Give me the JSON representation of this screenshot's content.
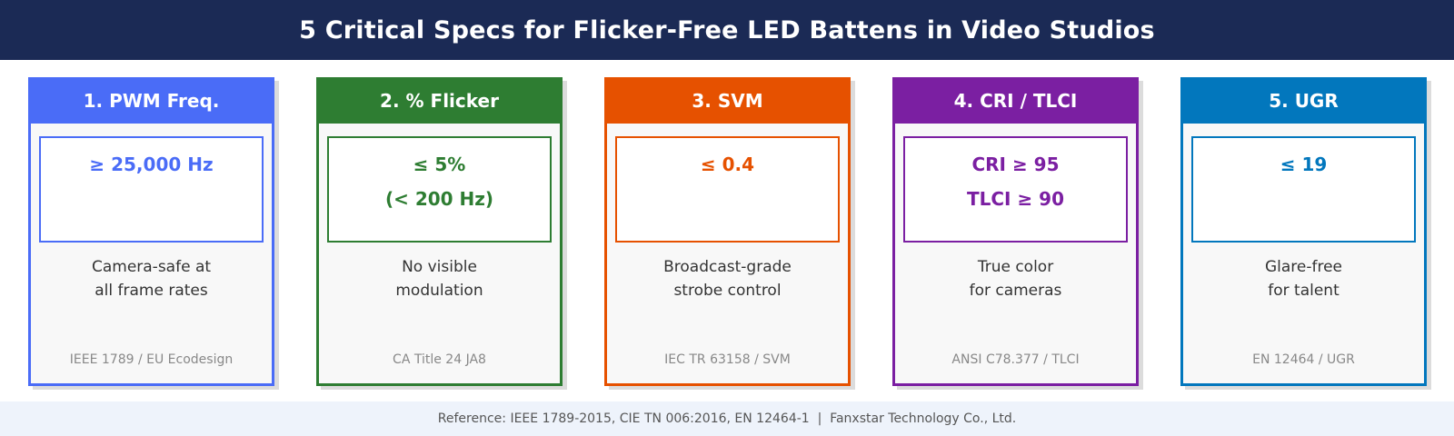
{
  "header": {
    "title": "5 Critical Specs for Flicker-Free LED Battens in Video Studios"
  },
  "cards": [
    {
      "title": "1. PWM Freq.",
      "accent": "#4a6cf7",
      "spec": [
        "≥ 25,000 Hz"
      ],
      "description": [
        "Camera-safe at",
        "all frame rates"
      ],
      "standard": "IEEE 1789 / EU Ecodesign"
    },
    {
      "title": "2. % Flicker",
      "accent": "#2e7d32",
      "spec": [
        "≤ 5%",
        "(< 200 Hz)"
      ],
      "description": [
        "No visible",
        "modulation"
      ],
      "standard": "CA Title 24 JA8"
    },
    {
      "title": "3. SVM",
      "accent": "#e65100",
      "spec": [
        "≤ 0.4"
      ],
      "description": [
        "Broadcast-grade",
        "strobe control"
      ],
      "standard": "IEC TR 63158 / SVM"
    },
    {
      "title": "4. CRI / TLCI",
      "accent": "#7b1fa2",
      "spec": [
        "CRI ≥ 95",
        "TLCI ≥ 90"
      ],
      "description": [
        "True color",
        "for cameras"
      ],
      "standard": "ANSI C78.377 / TLCI"
    },
    {
      "title": "5. UGR",
      "accent": "#0277bd",
      "spec": [
        "≤ 19"
      ],
      "description": [
        "Glare-free",
        "for talent"
      ],
      "standard": "EN 12464 / UGR"
    }
  ],
  "footer": {
    "text": "Reference: IEEE 1789-2015, CIE TN 006:2016, EN 12464-1  |  Fanxstar Technology Co., Ltd."
  }
}
